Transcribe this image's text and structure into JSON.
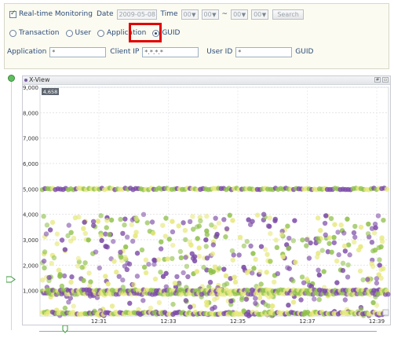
{
  "filter": {
    "realtime_label": "Real-time Monitoring",
    "date_label": "Date",
    "date_value": "2009-05-08",
    "time_label": "Time",
    "time_from_h": "00",
    "time_from_m": "00",
    "time_sep": "~",
    "time_to_h": "00",
    "time_to_m": "00",
    "search_label": "Search",
    "radios": {
      "transaction": "Transaction",
      "user": "User",
      "application": "Application",
      "guid": "GUID"
    },
    "application_label": "Application",
    "application_value": "*",
    "client_ip_label": "Client IP",
    "client_ip_value": "*.*.*.*",
    "user_id_label": "User ID",
    "user_id_value": "*",
    "guid_label": "GUID"
  },
  "xview": {
    "title": "X-View",
    "current_badge": "4,658"
  },
  "colors": {
    "purple": "#7b4aa6",
    "green": "#8fc04a",
    "yellow": "#e6e87a",
    "highlight": "#e00000"
  },
  "chart_data": {
    "type": "scatter",
    "title": "X-View",
    "y_ticks": [
      "1,000",
      "2,000",
      "3,000",
      "4,000",
      "5,000",
      "6,000",
      "7,000",
      "8,000",
      "9,000"
    ],
    "x_ticks": [
      "12:31",
      "12:33",
      "12:35",
      "12:37",
      "12:39"
    ],
    "ylim": [
      0,
      9000
    ],
    "grid": true,
    "bands": [
      {
        "y": 5000,
        "description": "dense line of points"
      },
      {
        "y": 1000,
        "description": "dense line of points"
      }
    ],
    "scatter_range": [
      0,
      4000
    ],
    "series": [
      {
        "color": "#7b4aa6"
      },
      {
        "color": "#8fc04a"
      },
      {
        "color": "#e6e87a"
      }
    ]
  }
}
